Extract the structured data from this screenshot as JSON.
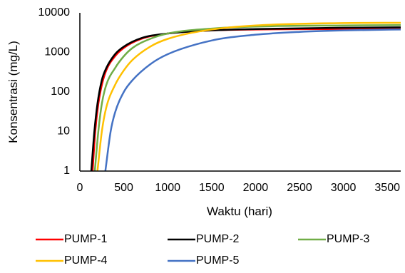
{
  "chart_data": {
    "type": "line",
    "xlabel": "Waktu (hari)",
    "ylabel": "Konsentrasi (mg/L)",
    "xlim": [
      0,
      3650
    ],
    "ylim": [
      1,
      10000
    ],
    "y_scale": "log",
    "x_ticks": [
      "0",
      "500",
      "1000",
      "1500",
      "2000",
      "2500",
      "3000",
      "3500"
    ],
    "y_ticks": [
      "1",
      "10",
      "100",
      "1000",
      "10000"
    ],
    "grid": false,
    "legend_position": "bottom",
    "series": [
      {
        "name": "PUMP-1",
        "color": "#ff0000",
        "x": [
          145,
          175,
          210,
          250,
          300,
          400,
          500,
          700,
          1000,
          1500,
          2000,
          3000,
          3650
        ],
        "y": [
          1,
          10,
          50,
          150,
          350,
          800,
          1300,
          2200,
          3000,
          3600,
          3800,
          3900,
          3950
        ]
      },
      {
        "name": "PUMP-2",
        "color": "#000000",
        "x": [
          130,
          165,
          200,
          250,
          300,
          400,
          500,
          700,
          1000,
          1500,
          2000,
          3000,
          3650
        ],
        "y": [
          1,
          10,
          50,
          200,
          400,
          900,
          1400,
          2300,
          3000,
          3600,
          3900,
          4200,
          4300
        ]
      },
      {
        "name": "PUMP-3",
        "color": "#70ad47",
        "x": [
          170,
          210,
          250,
          300,
          400,
          500,
          600,
          800,
          1000,
          1500,
          2000,
          3000,
          3650
        ],
        "y": [
          1,
          10,
          50,
          150,
          400,
          800,
          1300,
          2200,
          3000,
          4000,
          4500,
          4800,
          4900
        ]
      },
      {
        "name": "PUMP-4",
        "color": "#ffc000",
        "x": [
          200,
          250,
          300,
          400,
          500,
          600,
          800,
          1000,
          1500,
          2000,
          3000,
          3650
        ],
        "y": [
          1,
          10,
          40,
          150,
          350,
          650,
          1400,
          2200,
          3800,
          4800,
          5500,
          5600
        ]
      },
      {
        "name": "PUMP-5",
        "color": "#4472c4",
        "x": [
          290,
          350,
          400,
          500,
          600,
          800,
          1000,
          1500,
          2000,
          2500,
          3000,
          3650
        ],
        "y": [
          1,
          10,
          30,
          100,
          200,
          500,
          900,
          2000,
          2800,
          3300,
          3600,
          3800
        ]
      }
    ]
  }
}
